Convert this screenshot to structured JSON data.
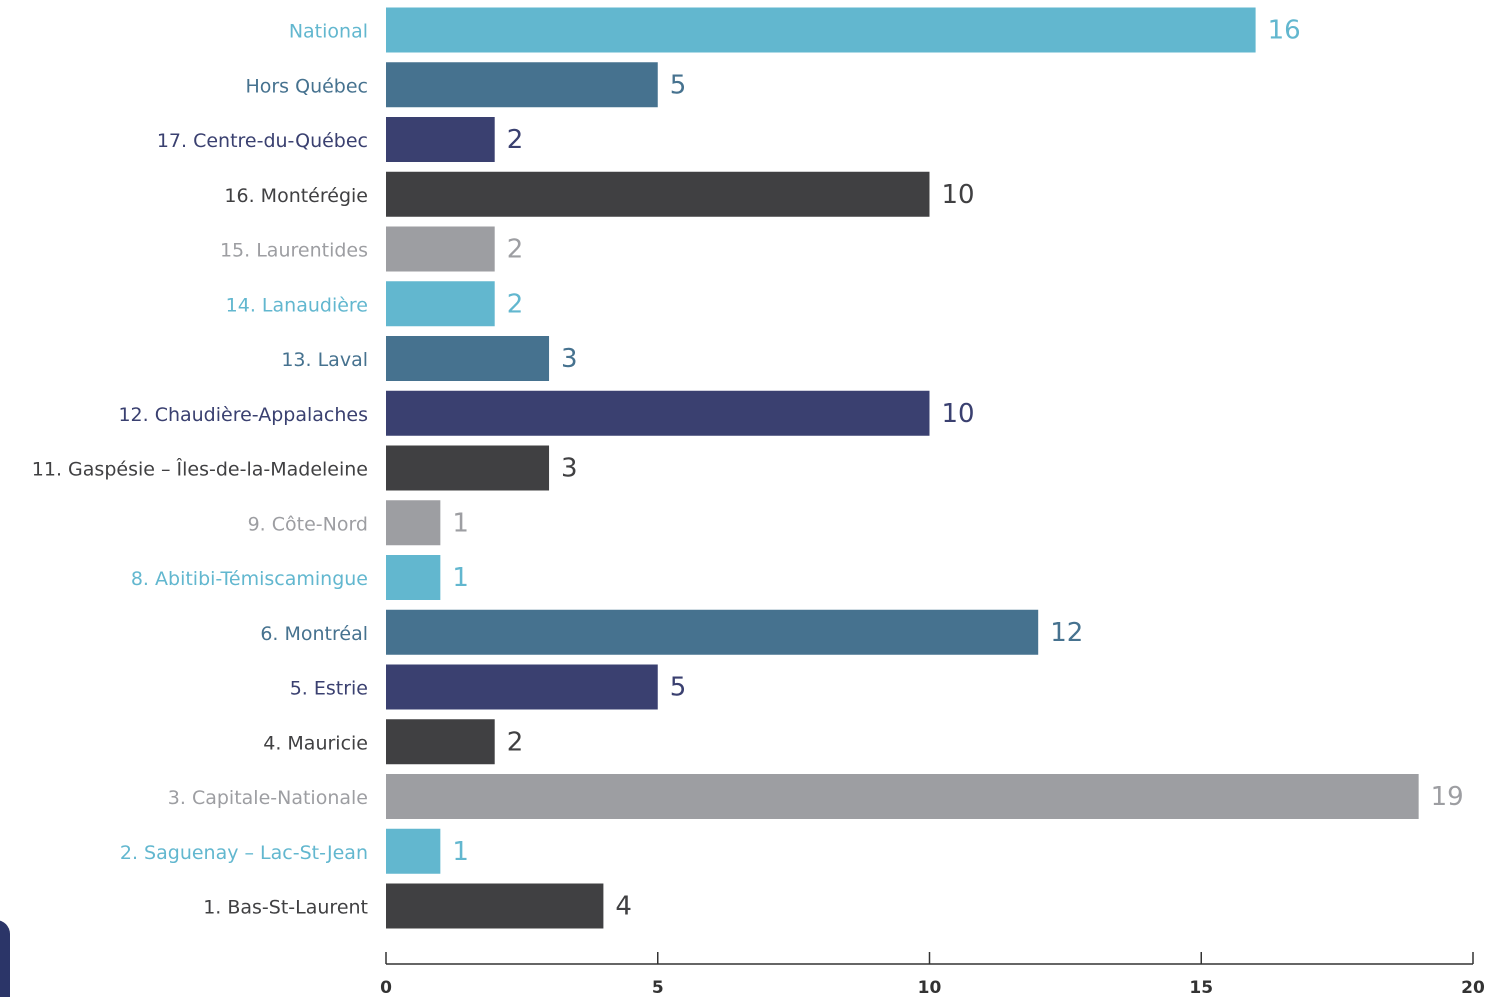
{
  "chart_data": {
    "type": "barh",
    "categories": [
      "National",
      "Hors Québec",
      "17. Centre-du-Québec",
      "16. Montérégie",
      "15. Laurentides",
      "14. Lanaudière",
      "13. Laval",
      "12. Chaudière-Appalaches",
      "11. Gaspésie – Îles-de-la-Madeleine",
      "9. Côte-Nord",
      "8. Abitibi-Témiscamingue",
      "6. Montréal",
      "5. Estrie",
      "4. Mauricie",
      "3. Capitale-Nationale",
      "2. Saguenay – Lac-St-Jean",
      "1. Bas-St-Laurent"
    ],
    "values": [
      16,
      5,
      2,
      10,
      2,
      2,
      3,
      10,
      3,
      1,
      1,
      12,
      5,
      2,
      19,
      1,
      4
    ],
    "colors": [
      "#62b7cf",
      "#46728f",
      "#3a4070",
      "#404042",
      "#9d9ea2",
      "#62b7cf",
      "#46728f",
      "#3a4070",
      "#404042",
      "#9d9ea2",
      "#62b7cf",
      "#46728f",
      "#3a4070",
      "#404042",
      "#9d9ea2",
      "#62b7cf",
      "#404042"
    ],
    "xlim": [
      0,
      20
    ],
    "xticks": [
      0,
      5,
      10,
      15,
      20
    ]
  }
}
